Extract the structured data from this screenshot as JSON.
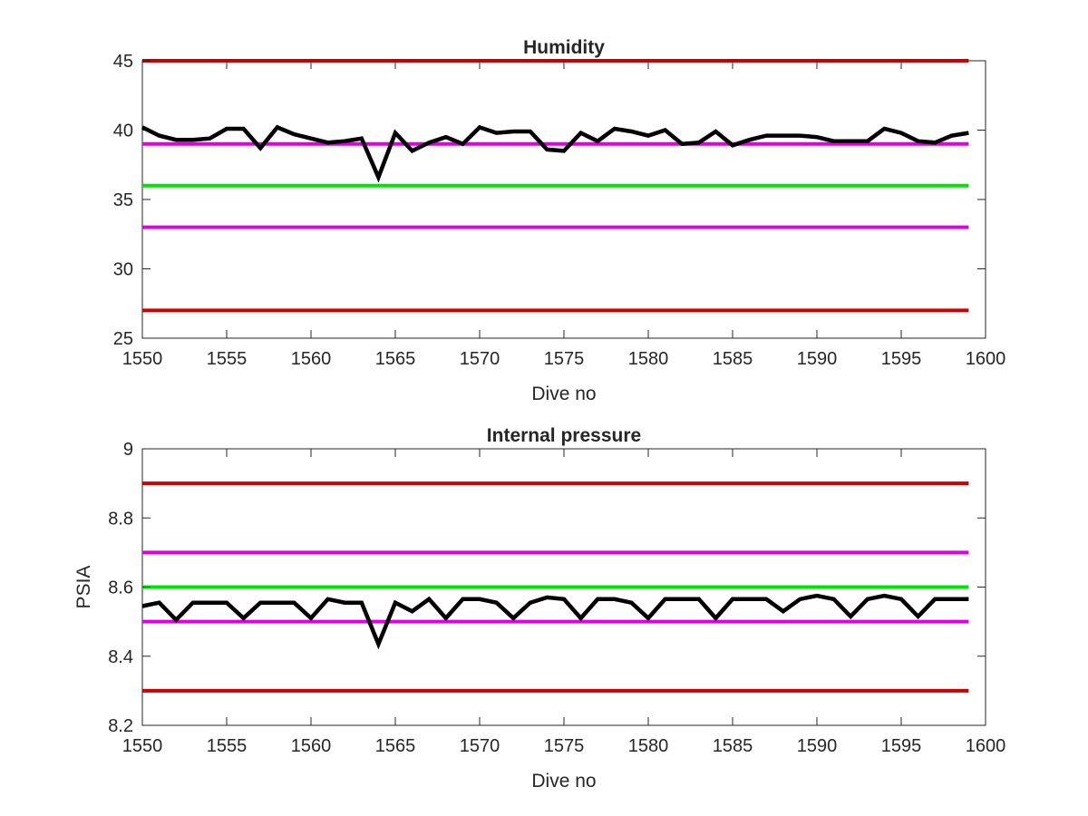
{
  "chart_data": [
    {
      "type": "line",
      "title": "Humidity",
      "xlabel": "Dive no",
      "ylabel": "",
      "xlim": [
        1550,
        1600
      ],
      "ylim": [
        25,
        45
      ],
      "xticks": [
        1550,
        1555,
        1560,
        1565,
        1570,
        1575,
        1580,
        1585,
        1590,
        1595,
        1600
      ],
      "yticks": [
        25,
        30,
        35,
        40,
        45
      ],
      "grid": false,
      "reference_lines": [
        {
          "y": 45,
          "color": "#cc0000"
        },
        {
          "y": 39,
          "color": "#e100e1"
        },
        {
          "y": 36,
          "color": "#00e600"
        },
        {
          "y": 33,
          "color": "#e100e1"
        },
        {
          "y": 27,
          "color": "#cc0000"
        }
      ],
      "series": [
        {
          "color": "#000000",
          "x": [
            1550,
            1551,
            1552,
            1553,
            1554,
            1555,
            1556,
            1557,
            1558,
            1559,
            1560,
            1561,
            1562,
            1563,
            1564,
            1565,
            1566,
            1567,
            1568,
            1569,
            1570,
            1571,
            1572,
            1573,
            1574,
            1575,
            1576,
            1577,
            1578,
            1579,
            1580,
            1581,
            1582,
            1583,
            1584,
            1585,
            1586,
            1587,
            1588,
            1589,
            1590,
            1591,
            1592,
            1593,
            1594,
            1595,
            1596,
            1597,
            1598,
            1599
          ],
          "values": [
            40.2,
            39.6,
            39.3,
            39.3,
            39.4,
            40.1,
            40.1,
            38.7,
            40.2,
            39.7,
            39.4,
            39.1,
            39.2,
            39.4,
            36.6,
            39.8,
            38.5,
            39.1,
            39.5,
            39.0,
            40.2,
            39.8,
            39.9,
            39.9,
            38.6,
            38.5,
            39.8,
            39.2,
            40.1,
            39.9,
            39.6,
            40.0,
            39.0,
            39.1,
            39.9,
            38.9,
            39.3,
            39.6,
            39.6,
            39.6,
            39.5,
            39.2,
            39.2,
            39.2,
            40.1,
            39.8,
            39.2,
            39.1,
            39.6,
            39.8
          ]
        }
      ]
    },
    {
      "type": "line",
      "title": "Internal pressure",
      "xlabel": "Dive no",
      "ylabel": "PSIA",
      "xlim": [
        1550,
        1600
      ],
      "ylim": [
        8.2,
        9
      ],
      "xticks": [
        1550,
        1555,
        1560,
        1565,
        1570,
        1575,
        1580,
        1585,
        1590,
        1595,
        1600
      ],
      "yticks": [
        "8.2",
        "8.4",
        "8.6",
        "8.8",
        "9"
      ],
      "grid": false,
      "reference_lines": [
        {
          "y": 8.9,
          "color": "#cc0000"
        },
        {
          "y": 8.7,
          "color": "#e100e1"
        },
        {
          "y": 8.6,
          "color": "#00e600"
        },
        {
          "y": 8.5,
          "color": "#e100e1"
        },
        {
          "y": 8.3,
          "color": "#cc0000"
        }
      ],
      "series": [
        {
          "color": "#000000",
          "x": [
            1550,
            1551,
            1552,
            1553,
            1554,
            1555,
            1556,
            1557,
            1558,
            1559,
            1560,
            1561,
            1562,
            1563,
            1564,
            1565,
            1566,
            1567,
            1568,
            1569,
            1570,
            1571,
            1572,
            1573,
            1574,
            1575,
            1576,
            1577,
            1578,
            1579,
            1580,
            1581,
            1582,
            1583,
            1584,
            1585,
            1586,
            1587,
            1588,
            1589,
            1590,
            1591,
            1592,
            1593,
            1594,
            1595,
            1596,
            1597,
            1598,
            1599
          ],
          "values": [
            8.545,
            8.555,
            8.505,
            8.555,
            8.555,
            8.555,
            8.51,
            8.555,
            8.555,
            8.555,
            8.51,
            8.565,
            8.555,
            8.555,
            8.435,
            8.555,
            8.53,
            8.565,
            8.51,
            8.565,
            8.565,
            8.555,
            8.51,
            8.555,
            8.57,
            8.565,
            8.51,
            8.565,
            8.565,
            8.555,
            8.51,
            8.565,
            8.565,
            8.565,
            8.51,
            8.565,
            8.565,
            8.565,
            8.53,
            8.565,
            8.575,
            8.565,
            8.515,
            8.565,
            8.575,
            8.565,
            8.515,
            8.565,
            8.565,
            8.565
          ]
        }
      ]
    }
  ]
}
